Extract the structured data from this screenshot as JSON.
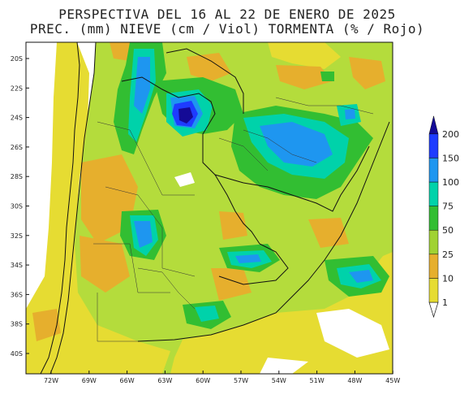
{
  "title": {
    "line1": "PERSPECTIVA DEL 16 AL 22 DE ENERO DE 2025",
    "line2": "PREC. (mm) NIEVE (cm / Viol) TORMENTA (% / Rojo)"
  },
  "lat_ticks": [
    "20S",
    "22S",
    "24S",
    "26S",
    "28S",
    "30S",
    "32S",
    "34S",
    "36S",
    "38S",
    "40S"
  ],
  "lon_ticks": [
    "72W",
    "69W",
    "66W",
    "63W",
    "60W",
    "57W",
    "54W",
    "51W",
    "48W",
    "45W"
  ],
  "colorbar": {
    "levels": [
      "1",
      "10",
      "25",
      "50",
      "75",
      "100",
      "150",
      "200"
    ],
    "colors": [
      "#e6dc32",
      "#e6af2d",
      "#a0d232",
      "#32be32",
      "#00d2aa",
      "#1e96f0",
      "#1e3cff",
      "#140a96"
    ]
  },
  "colors": {
    "ocean": "#ffffff",
    "land_base": "#b4dc3c",
    "borders": "#111111"
  }
}
